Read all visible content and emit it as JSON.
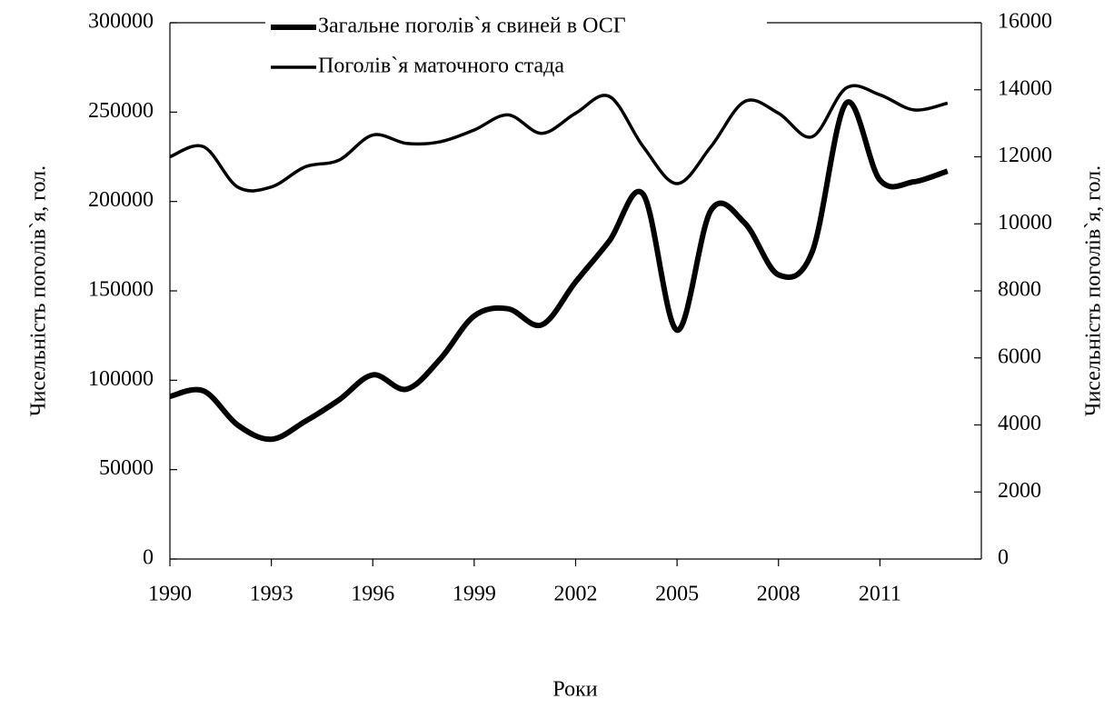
{
  "chart_data": {
    "type": "line",
    "x_label": "Роки",
    "y_label": "Чисельність поголів`я, гол.",
    "y2_label": "Чисельність поголів`я, гол.",
    "x": [
      1990,
      1991,
      1992,
      1993,
      1994,
      1995,
      1996,
      1997,
      1998,
      1999,
      2000,
      2001,
      2002,
      2003,
      2004,
      2005,
      2006,
      2007,
      2008,
      2009,
      2010,
      2011,
      2012,
      2013
    ],
    "series": [
      {
        "name": "Загальне поголів`я свиней в ОСГ",
        "color": "#000000",
        "axis": "y",
        "values": [
          91000,
          94000,
          75000,
          67000,
          77000,
          89000,
          103000,
          95000,
          112000,
          136000,
          140000,
          131000,
          155000,
          178000,
          204000,
          128000,
          195000,
          188000,
          159000,
          172000,
          255000,
          212000,
          211000,
          217000
        ]
      },
      {
        "name": "Поголів`я маточного стада",
        "color": "#000000",
        "axis": "y2",
        "values": [
          12000,
          12300,
          11100,
          11100,
          11700,
          11900,
          12650,
          12400,
          12450,
          12800,
          13250,
          12700,
          13300,
          13800,
          12300,
          11200,
          12300,
          13650,
          13300,
          12600,
          14050,
          13850,
          13400,
          13600
        ]
      }
    ],
    "xlim": [
      1990,
      2014
    ],
    "xticks": [
      1990,
      1993,
      1996,
      1999,
      2002,
      2005,
      2008,
      2011
    ],
    "ylim": [
      0,
      300000
    ],
    "yticks": [
      0,
      50000,
      100000,
      150000,
      200000,
      250000,
      300000
    ],
    "y2lim": [
      0,
      16000
    ],
    "y2ticks": [
      0,
      2000,
      4000,
      6000,
      8000,
      10000,
      12000,
      14000,
      16000
    ],
    "legend": "top"
  }
}
